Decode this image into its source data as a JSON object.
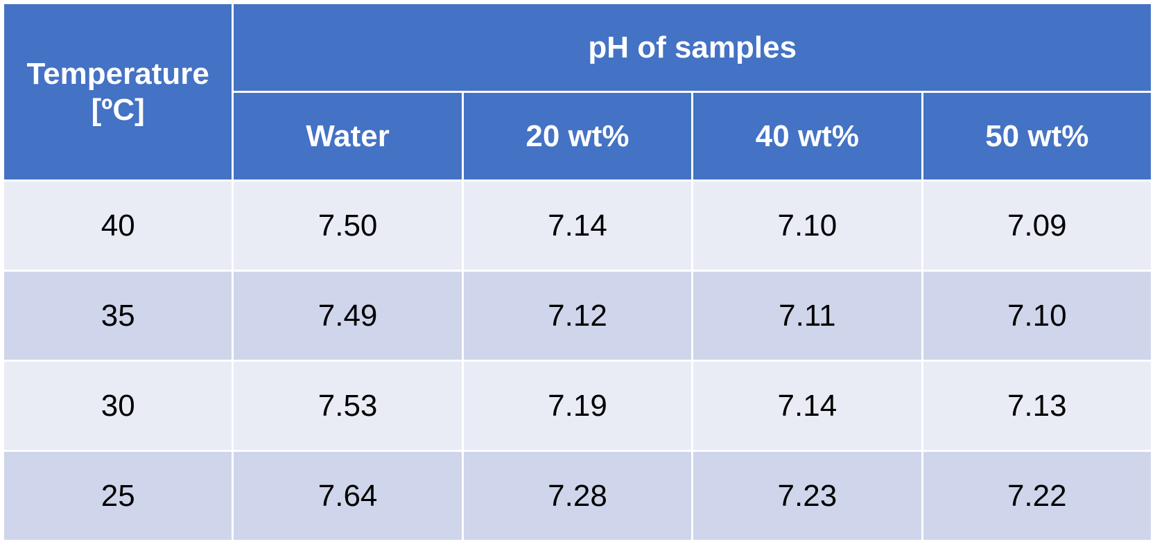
{
  "chart_data": {
    "type": "table",
    "title": "pH of samples",
    "row_header": {
      "line1": "Temperature",
      "line2": "[ºC]"
    },
    "columns": [
      "Water",
      "20 wt%",
      "40 wt%",
      "50 wt%"
    ],
    "rows": [
      {
        "temperature": "40",
        "values": [
          "7.50",
          "7.14",
          "7.10",
          "7.09"
        ]
      },
      {
        "temperature": "35",
        "values": [
          "7.49",
          "7.12",
          "7.11",
          "7.10"
        ]
      },
      {
        "temperature": "30",
        "values": [
          "7.53",
          "7.19",
          "7.14",
          "7.13"
        ]
      },
      {
        "temperature": "25",
        "values": [
          "7.64",
          "7.28",
          "7.23",
          "7.22"
        ]
      }
    ]
  },
  "colors": {
    "header_bg": "#4472c4",
    "header_text": "#ffffff",
    "row_light": "#e9ebf5",
    "row_dark": "#cfd5ea",
    "grid": "#ffffff"
  }
}
